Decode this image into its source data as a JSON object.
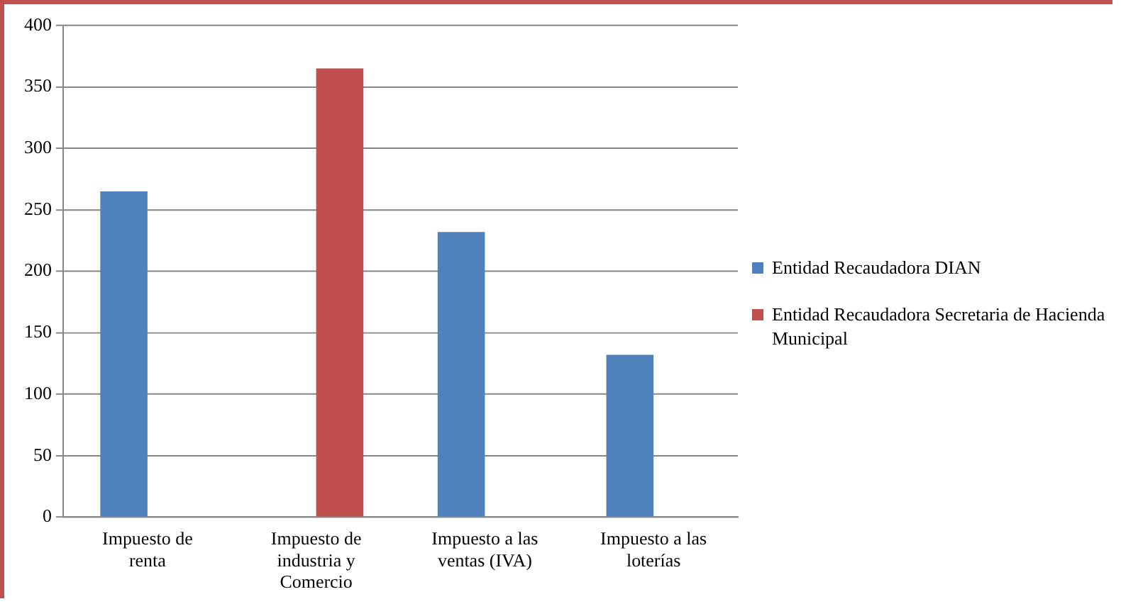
{
  "chart_data": {
    "type": "bar",
    "categories": [
      "Impuesto de renta",
      "Impuesto de industria y Comercio",
      "Impuesto a las ventas (IVA)",
      "Impuesto a las loterías"
    ],
    "series": [
      {
        "name": "Entidad Recaudadora DIAN",
        "color": "#4f81bd",
        "values": [
          265,
          null,
          232,
          132
        ]
      },
      {
        "name": "Entidad Recaudadora Secretaria de Hacienda Municipal",
        "color": "#c0504d",
        "values": [
          null,
          365,
          null,
          null
        ]
      }
    ],
    "ylim": [
      0,
      400
    ],
    "yticks": [
      0,
      50,
      100,
      150,
      200,
      250,
      300,
      350,
      400
    ],
    "grid": "y",
    "legend": "right"
  }
}
